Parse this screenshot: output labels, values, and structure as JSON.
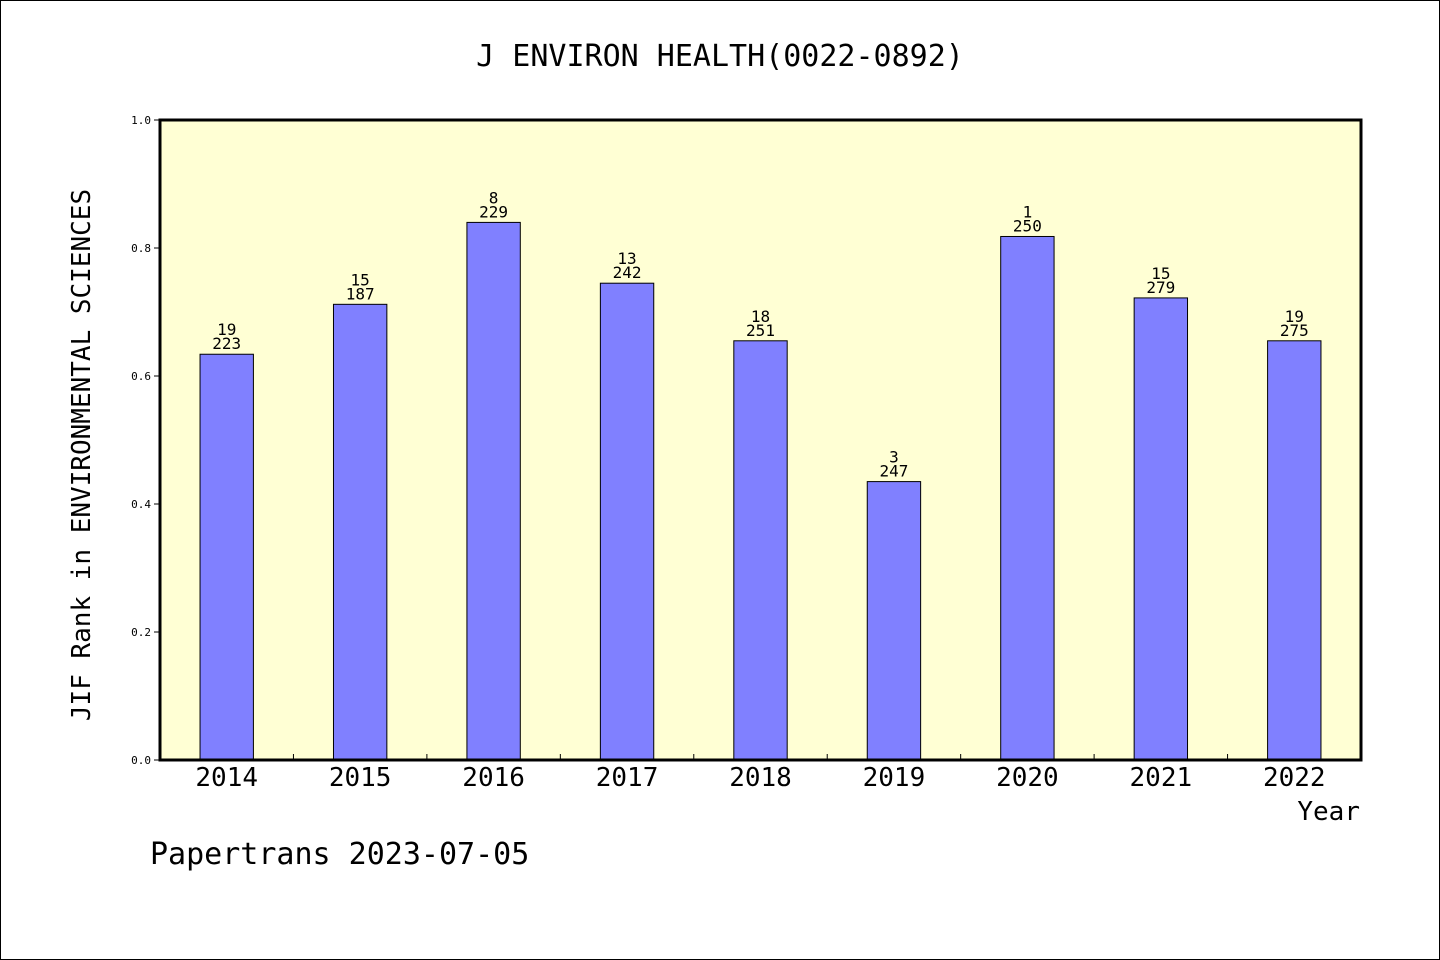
{
  "chart_data": {
    "type": "bar",
    "title": "J ENVIRON HEALTH(0022-0892)",
    "xlabel": "Year",
    "ylabel": "JIF Rank in ENVIRONMENTAL SCIENCES",
    "ylim": [
      0,
      1.0
    ],
    "yticks": [
      "0.0",
      "0.2",
      "0.4",
      "0.6",
      "0.8",
      "1.0"
    ],
    "categories": [
      "2014",
      "2015",
      "2016",
      "2017",
      "2018",
      "2019",
      "2020",
      "2021",
      "2022"
    ],
    "values": [
      0.634,
      0.712,
      0.84,
      0.745,
      0.655,
      0.435,
      0.818,
      0.722,
      0.655
    ],
    "rank_labels": [
      "19",
      "15",
      "8",
      "13",
      "18",
      "3",
      "1",
      "15",
      "19"
    ],
    "total_labels": [
      "223",
      "187",
      "229",
      "242",
      "251",
      "247",
      "250",
      "279",
      "275"
    ],
    "grid": false,
    "legend": "none",
    "colors": {
      "plot_bg": "#ffffd4",
      "bar": "#8080ff",
      "bar_stroke": "#000000"
    }
  },
  "footer": {
    "credit": "Papertrans 2023-07-05"
  }
}
